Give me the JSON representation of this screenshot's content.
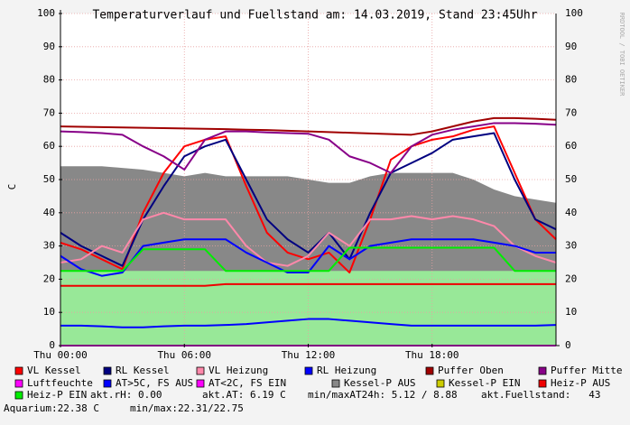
{
  "chart_data": {
    "type": "line",
    "title": "Temperaturverlauf und Fuellstand am: 14.03.2019, Stand 23:45Uhr",
    "y_label": "C",
    "side_label": "RRDTOOL / TOBI OETIKER",
    "x": [
      0,
      1,
      2,
      3,
      4,
      5,
      6,
      7,
      8,
      9,
      10,
      11,
      12,
      13,
      14,
      15,
      16,
      17,
      18,
      19,
      20,
      21,
      22,
      23,
      24
    ],
    "xlim": [
      0,
      24
    ],
    "xticks": [
      {
        "value": 0,
        "label": "Thu 00:00"
      },
      {
        "value": 6,
        "label": "Thu 06:00"
      },
      {
        "value": 12,
        "label": "Thu 12:00"
      },
      {
        "value": 18,
        "label": "Thu 18:00"
      }
    ],
    "ylim": [
      0,
      100
    ],
    "yticks": [
      0,
      10,
      20,
      30,
      40,
      50,
      60,
      70,
      80,
      90,
      100
    ],
    "grid": true,
    "fill": {
      "color": "#98e898",
      "values": [
        22.5,
        22.5,
        22.5,
        22.5,
        22.5,
        22.5,
        22.5,
        22.5,
        22.5,
        22.5,
        22.5,
        22.5,
        22.5,
        22.5,
        22.5,
        22.5,
        22.5,
        22.5,
        22.5,
        22.5,
        22.5,
        22.5,
        22.5,
        22.5,
        22.5
      ]
    },
    "series": [
      {
        "name": "VL Kessel",
        "color": "#ff0000",
        "values": [
          31,
          29,
          26,
          23,
          40,
          52,
          60,
          62,
          63,
          48,
          34,
          28,
          26,
          28,
          22,
          38,
          56,
          60,
          62,
          63,
          65,
          66,
          52,
          38,
          32
        ]
      },
      {
        "name": "RL Kessel",
        "color": "#000080",
        "values": [
          34,
          30,
          27,
          24,
          38,
          48,
          57,
          60,
          62,
          50,
          38,
          32,
          28,
          34,
          26,
          40,
          52,
          55,
          58,
          62,
          63,
          64,
          50,
          38,
          35
        ]
      },
      {
        "name": "VL Heizung",
        "color": "#ff88aa",
        "values": [
          25,
          26,
          30,
          28,
          38,
          40,
          38,
          38,
          38,
          30,
          25,
          24,
          27,
          34,
          30,
          38,
          38,
          39,
          38,
          39,
          38,
          36,
          30,
          27,
          25
        ]
      },
      {
        "name": "RL Heizung",
        "color": "#0000ff",
        "values": [
          27,
          23,
          21,
          22,
          30,
          31,
          32,
          32,
          32,
          28,
          25,
          22,
          22,
          30,
          26,
          30,
          31,
          32,
          32,
          32,
          32,
          31,
          30,
          28,
          28
        ]
      },
      {
        "name": "Puffer Oben",
        "color": "#a00000",
        "values": [
          66,
          65.9,
          65.8,
          65.7,
          65.6,
          65.5,
          65.4,
          65.3,
          65.2,
          65,
          64.9,
          64.7,
          64.5,
          64.3,
          64.1,
          63.9,
          63.7,
          63.5,
          64.5,
          66,
          67.5,
          68.5,
          68.5,
          68.3,
          68
        ]
      },
      {
        "name": "Puffer Mitte",
        "color": "#880088",
        "values": [
          64.5,
          64.3,
          64,
          63.5,
          60,
          57,
          53,
          62,
          64.5,
          64.5,
          64.2,
          64,
          63.8,
          62,
          57,
          55,
          52,
          60,
          63.5,
          65,
          66,
          67,
          67,
          66.8,
          66.5
        ]
      },
      {
        "name": "Luftfeuchte",
        "color": "#ff00ff",
        "values": [
          0,
          0,
          0,
          0,
          0,
          0,
          0,
          0,
          0,
          0,
          0,
          0,
          0,
          0,
          0,
          0,
          0,
          0,
          0,
          0,
          0,
          0,
          0,
          0,
          0
        ]
      },
      {
        "name": "AT>5C, FS AUS",
        "color": "#0000ff",
        "values": [
          6,
          6,
          5.8,
          5.5,
          5.5,
          5.8,
          6,
          6,
          6.2,
          6.5,
          7,
          7.5,
          8,
          8,
          7.5,
          7,
          6.5,
          6,
          6,
          6,
          6,
          6,
          6,
          6,
          6.2
        ]
      },
      {
        "name": "AT<2C, FS EIN",
        "color": "#ff00ff"
      },
      {
        "name": "Kessel-P AUS",
        "color": "#888888",
        "area": true,
        "values": [
          54,
          54,
          54,
          53.5,
          53,
          52,
          51,
          52,
          51,
          51,
          51,
          51,
          50,
          49,
          49,
          51,
          52,
          52,
          52,
          52,
          50,
          47,
          45,
          44,
          43
        ]
      },
      {
        "name": "Kessel-P EIN",
        "color": "#cccc00"
      },
      {
        "name": "Heiz-P AUS",
        "color": "#ee0000",
        "values": [
          18,
          18,
          18,
          18,
          18,
          18,
          18,
          18,
          18.5,
          18.5,
          18.5,
          18.5,
          18.5,
          18.5,
          18.5,
          18.5,
          18.5,
          18.5,
          18.5,
          18.5,
          18.5,
          18.5,
          18.5,
          18.5,
          18.5
        ]
      },
      {
        "name": "Heiz-P EIN",
        "color": "#00ee00",
        "values": [
          22.5,
          22.5,
          22.5,
          22.5,
          29,
          29,
          29,
          29,
          22.5,
          22.5,
          22.5,
          22.5,
          22.5,
          22.5,
          29.5,
          29.5,
          29.5,
          29.5,
          29.5,
          29.5,
          29.5,
          29.5,
          22.5,
          22.5,
          22.5
        ]
      }
    ],
    "annotations": [
      "akt.rH: 0.00",
      "akt.AT: 6.19 C",
      "min/maxAT24h: 5.12 / 8.88",
      "akt.Fuellstand:   43",
      "Aquarium:22.38 C",
      "min/max:22.31/22.75"
    ]
  }
}
